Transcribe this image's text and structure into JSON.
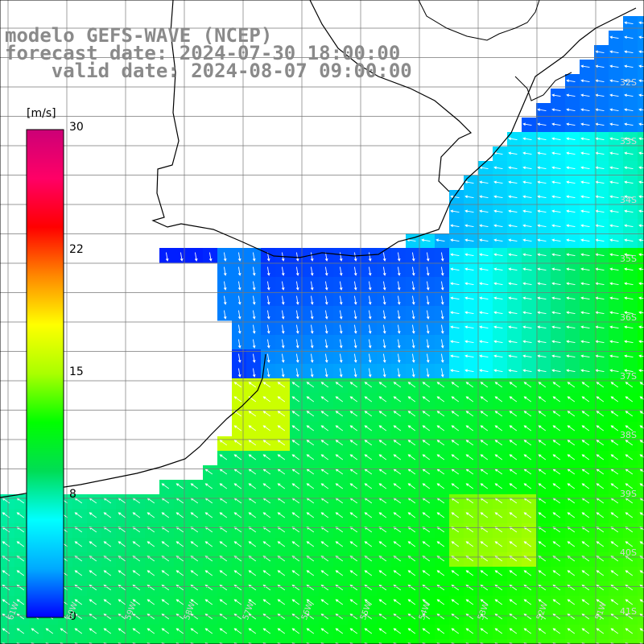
{
  "title": {
    "line1": "modelo GEFS-WAVE (NCEP)",
    "line2": "forecast date: 2024-07-30 18:00:00",
    "line3": "    valid date: 2024-08-07 09:00:00"
  },
  "colorbar": {
    "unit": "[m/s]",
    "ticks": [
      "30",
      "22",
      "15",
      "8",
      "0"
    ],
    "tick_values": [
      30,
      22,
      15,
      8,
      0
    ],
    "range": [
      0,
      30
    ],
    "colors": [
      "#0000ff",
      "#00aaff",
      "#00ffff",
      "#00dd55",
      "#00ff00",
      "#aaff00",
      "#ffff00",
      "#ff8800",
      "#ff0000",
      "#ff0066",
      "#cc0077"
    ]
  },
  "lat_labels": [
    "32S",
    "33S",
    "34S",
    "35S",
    "36S",
    "37S",
    "38S",
    "39S",
    "40S",
    "41S"
  ],
  "lon_labels": [
    "61W",
    "60W",
    "59W",
    "58W",
    "57W",
    "56W",
    "55W",
    "54W",
    "53W",
    "52W",
    "51W"
  ],
  "field": {
    "description_units": "wind speed m/s",
    "land_color": "#ffffff"
  }
}
